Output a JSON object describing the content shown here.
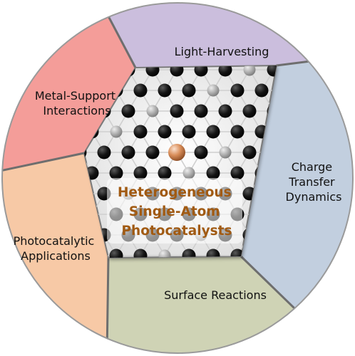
{
  "center": {
    "lines": [
      "Heterogeneous",
      "Single-Atom",
      "Photocatalysts"
    ]
  },
  "segments": [
    {
      "id": "light",
      "lines": [
        "Light-Harvesting"
      ],
      "color": "#cbbedd"
    },
    {
      "id": "charge",
      "lines": [
        "Charge",
        "Transfer",
        "Dynamics"
      ],
      "color": "#c2cfdf"
    },
    {
      "id": "surface",
      "lines": [
        "Surface Reactions"
      ],
      "color": "#cfd3b5"
    },
    {
      "id": "photo",
      "lines": [
        "Photocatalytic",
        "Applications"
      ],
      "color": "#f7c9a6"
    },
    {
      "id": "metal",
      "lines": [
        "Metal-Support",
        "Interactions"
      ],
      "color": "#f49d99"
    }
  ],
  "colors": {
    "atom_dark": "#141414",
    "atom_gray": "#a3a3a3",
    "single_atom": "#d98e5a",
    "center_text": "#a15a12"
  }
}
